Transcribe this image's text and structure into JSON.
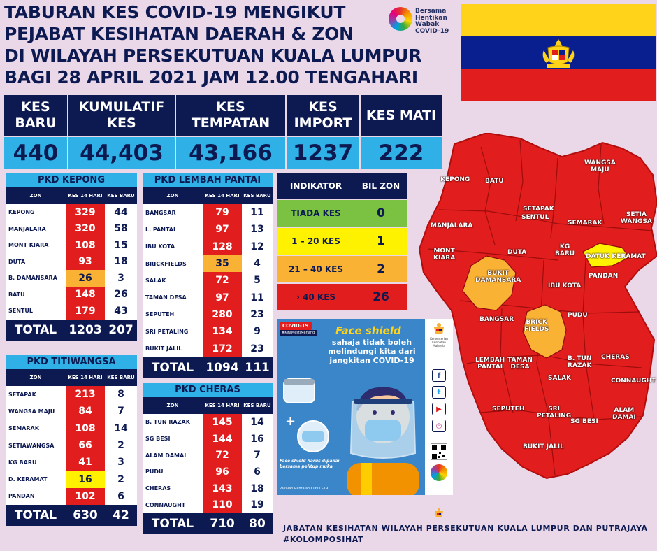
{
  "title": {
    "line1": "TABURAN KES COVID-19 MENGIKUT",
    "line2": "PEJABAT KESIHATAN DAERAH & ZON",
    "line3": "DI WILAYAH PERSEKUTUAN KUALA LUMPUR",
    "line4": "BAGI 28 APRIL 2021 JAM 12.00 TENGAHARI"
  },
  "campaign_logo": {
    "l1": "Bersama",
    "l2": "Hentikan",
    "l3": "Wabak",
    "l4": "COVID-19"
  },
  "summary": {
    "headers": [
      "KES BARU",
      "KUMULATIF KES",
      "KES TEMPATAN",
      "KES IMPORT",
      "KES MATI"
    ],
    "values": [
      "440",
      "44,403",
      "43,166",
      "1237",
      "222"
    ]
  },
  "column_headers": {
    "zon": "ZON",
    "kes14": "KES 14 HARI",
    "kesbaru": "KES BARU"
  },
  "kepong": {
    "name": "PKD KEPONG",
    "rows": [
      {
        "zon": "KEPONG",
        "k14": "329",
        "kb": "44",
        "level": "red"
      },
      {
        "zon": "MANJALARA",
        "k14": "320",
        "kb": "58",
        "level": "red"
      },
      {
        "zon": "MONT KIARA",
        "k14": "108",
        "kb": "15",
        "level": "red"
      },
      {
        "zon": "DUTA",
        "k14": "93",
        "kb": "18",
        "level": "red"
      },
      {
        "zon": "B. DAMANSARA",
        "k14": "26",
        "kb": "3",
        "level": "orange"
      },
      {
        "zon": "BATU",
        "k14": "148",
        "kb": "26",
        "level": "red"
      },
      {
        "zon": "SENTUL",
        "k14": "179",
        "kb": "43",
        "level": "red"
      }
    ],
    "total_label": "TOTAL",
    "total_k14": "1203",
    "total_kb": "207"
  },
  "titiwangsa": {
    "name": "PKD TITIWANGSA",
    "rows": [
      {
        "zon": "SETAPAK",
        "k14": "213",
        "kb": "8",
        "level": "red"
      },
      {
        "zon": "WANGSA MAJU",
        "k14": "84",
        "kb": "7",
        "level": "red"
      },
      {
        "zon": "SEMARAK",
        "k14": "108",
        "kb": "14",
        "level": "red"
      },
      {
        "zon": "SETIAWANGSA",
        "k14": "66",
        "kb": "2",
        "level": "red"
      },
      {
        "zon": "KG BARU",
        "k14": "41",
        "kb": "3",
        "level": "red"
      },
      {
        "zon": "D. KERAMAT",
        "k14": "16",
        "kb": "2",
        "level": "yellow"
      },
      {
        "zon": "PANDAN",
        "k14": "102",
        "kb": "6",
        "level": "red"
      }
    ],
    "total_label": "TOTAL",
    "total_k14": "630",
    "total_kb": "42"
  },
  "lembah_pantai": {
    "name": "PKD LEMBAH PANTAI",
    "rows": [
      {
        "zon": "BANGSAR",
        "k14": "79",
        "kb": "11",
        "level": "red"
      },
      {
        "zon": "L. PANTAI",
        "k14": "97",
        "kb": "13",
        "level": "red"
      },
      {
        "zon": "IBU KOTA",
        "k14": "128",
        "kb": "12",
        "level": "red"
      },
      {
        "zon": "BRICKFIELDS",
        "k14": "35",
        "kb": "4",
        "level": "orange"
      },
      {
        "zon": "SALAK",
        "k14": "72",
        "kb": "5",
        "level": "red"
      },
      {
        "zon": "TAMAN DESA",
        "k14": "97",
        "kb": "11",
        "level": "red"
      },
      {
        "zon": "SEPUTEH",
        "k14": "280",
        "kb": "23",
        "level": "red"
      },
      {
        "zon": "SRI PETALING",
        "k14": "134",
        "kb": "9",
        "level": "red"
      },
      {
        "zon": "BUKIT JALIL",
        "k14": "172",
        "kb": "23",
        "level": "red"
      }
    ],
    "total_label": "TOTAL",
    "total_k14": "1094",
    "total_kb": "111"
  },
  "cheras": {
    "name": "PKD CHERAS",
    "rows": [
      {
        "zon": "B. TUN RAZAK",
        "k14": "145",
        "kb": "14",
        "level": "red"
      },
      {
        "zon": "SG BESI",
        "k14": "144",
        "kb": "16",
        "level": "red"
      },
      {
        "zon": "ALAM DAMAI",
        "k14": "72",
        "kb": "7",
        "level": "red"
      },
      {
        "zon": "PUDU",
        "k14": "96",
        "kb": "6",
        "level": "red"
      },
      {
        "zon": "CHERAS",
        "k14": "143",
        "kb": "18",
        "level": "red"
      },
      {
        "zon": "CONNAUGHT",
        "k14": "110",
        "kb": "19",
        "level": "red"
      }
    ],
    "total_label": "TOTAL",
    "total_k14": "710",
    "total_kb": "80"
  },
  "indicator": {
    "header_left": "INDIKATOR",
    "header_right": "BIL ZON",
    "rows": [
      {
        "label": "TIADA KES",
        "count": "0",
        "color": "#7cc242"
      },
      {
        "label": "1 – 20 KES",
        "count": "1",
        "color": "#fff200"
      },
      {
        "label": "21 – 40 KES",
        "count": "2",
        "color": "#f9b234"
      },
      {
        "label": "› 40 KES",
        "count": "26",
        "color": "#e11d1d"
      }
    ]
  },
  "poster": {
    "tag": "COVID-19",
    "tag_sub": "#KitaMestiMenang",
    "heading": "Face shield",
    "message": "sahaja tidak boleh melindungi kita dari jangkitan COVID-19",
    "note": "Face shield harus dipakai bersama pelitup muka",
    "footer": "Pakaian Rantaian COVID-19",
    "ministry": "Kementerian Kesihatan Malaysia",
    "social_icons": [
      "facebook-icon",
      "twitter-icon",
      "youtube-icon",
      "instagram-icon"
    ]
  },
  "map": {
    "labels": [
      {
        "text": "BATU"
      },
      {
        "text": "WANGSA\nMAJU"
      },
      {
        "text": "KEPONG"
      },
      {
        "text": "SETAPAK"
      },
      {
        "text": "SENTUL"
      },
      {
        "text": "SEMARAK"
      },
      {
        "text": "SETIA\nWANGSA"
      },
      {
        "text": "MANJALARA"
      },
      {
        "text": "MONT\nKIARA"
      },
      {
        "text": "DUTA"
      },
      {
        "text": "KG\nBARU"
      },
      {
        "text": "DATUK KERAMAT"
      },
      {
        "text": "BUKIT\nDAMANSARA"
      },
      {
        "text": "IBU KOTA"
      },
      {
        "text": "PANDAN"
      },
      {
        "text": "BANGSAR"
      },
      {
        "text": "BRICK\nFIELDS"
      },
      {
        "text": "PUDU"
      },
      {
        "text": "LEMBAH\nPANTAI"
      },
      {
        "text": "TAMAN\nDESA"
      },
      {
        "text": "B. TUN\nRAZAK"
      },
      {
        "text": "CHERAS"
      },
      {
        "text": "SALAK"
      },
      {
        "text": "CONNAUGHT"
      },
      {
        "text": "SEPUTEH"
      },
      {
        "text": "SRI\nPETALING"
      },
      {
        "text": "SG BESI"
      },
      {
        "text": "ALAM\nDAMAI"
      },
      {
        "text": "BUKIT JALIL"
      }
    ]
  },
  "footer": {
    "line1": "JABATAN KESIHATAN WILAYAH PERSEKUTUAN KUALA LUMPUR DAN PUTRAJAYA",
    "line2": "#KOLOMPOSIHAT"
  }
}
